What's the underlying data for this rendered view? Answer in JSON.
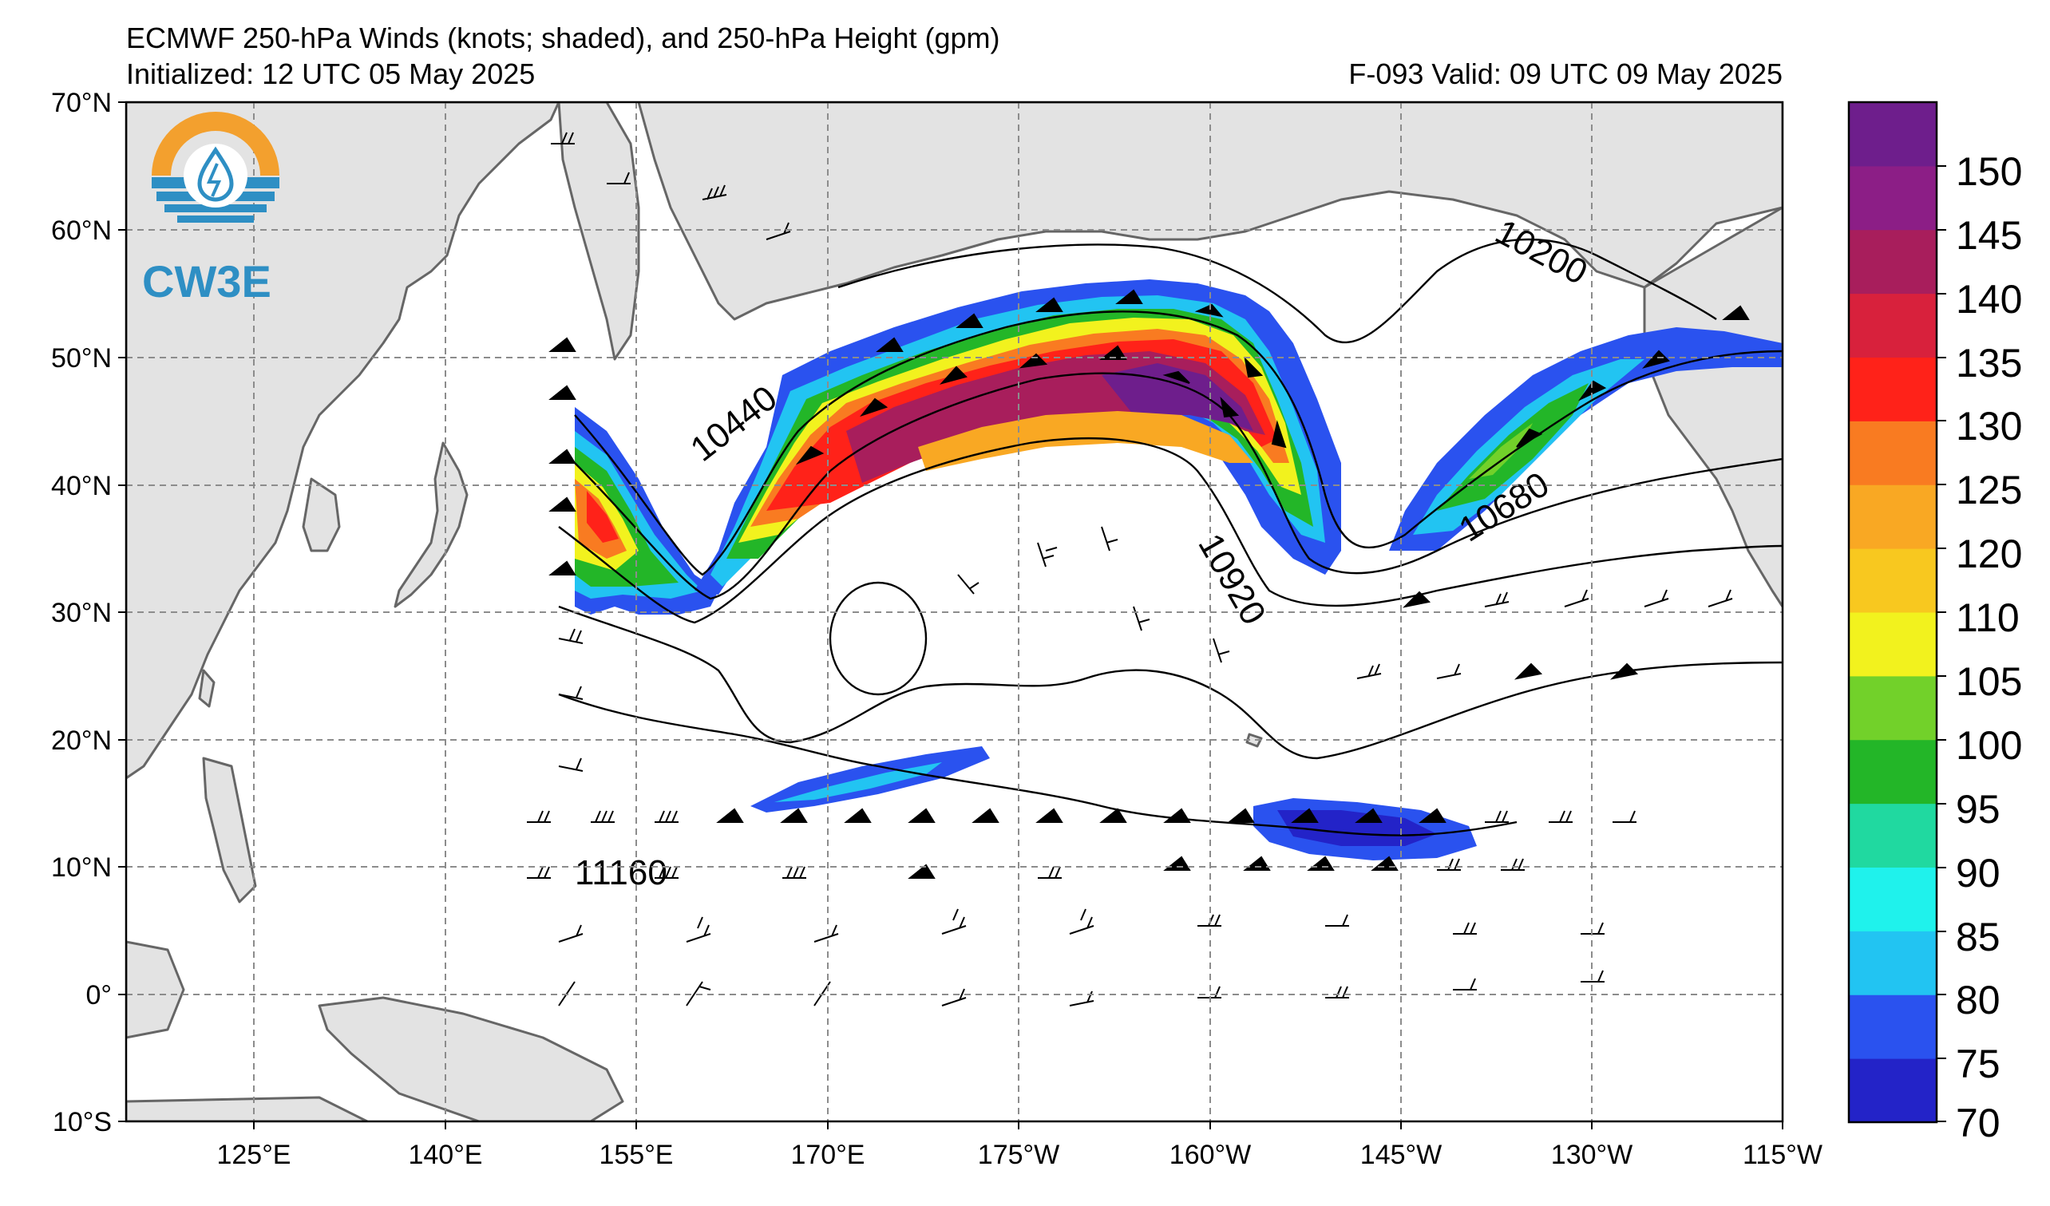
{
  "title": {
    "line1": "ECMWF 250-hPa Winds (knots; shaded), and 250-hPa Height (gpm)",
    "line2": "Initialized: 12 UTC 05 May 2025",
    "valid": "F-093  Valid: 09 UTC 09 May 2025"
  },
  "logo": {
    "text": "CW3E",
    "ring_top_color": "#f3a02e",
    "ring_bottom_color": "#2e8fc4",
    "icon": "water-drop-icon"
  },
  "map": {
    "lat_labels": [
      "70°N",
      "60°N",
      "50°N",
      "40°N",
      "30°N",
      "20°N",
      "10°N",
      "0°",
      "10°S"
    ],
    "lon_labels": [
      "125°E",
      "140°E",
      "155°E",
      "170°E",
      "175°W",
      "160°W",
      "145°W",
      "130°W",
      "115°W"
    ],
    "extent": {
      "lon_min": 115,
      "lon_max": 245,
      "lat_min": -10,
      "lat_max": 70
    },
    "height_contour_labels": [
      "10200",
      "10440",
      "10680",
      "10920",
      "11160"
    ],
    "land_color": "#e3e3e3",
    "coast_color": "#666666"
  },
  "colorbar": {
    "labels": [
      "150",
      "145",
      "140",
      "135",
      "130",
      "125",
      "120",
      "110",
      "105",
      "100",
      "95",
      "90",
      "85",
      "80",
      "75",
      "70"
    ],
    "levels": [
      70,
      75,
      80,
      85,
      90,
      95,
      100,
      105,
      110,
      120,
      125,
      130,
      135,
      140,
      145,
      150,
      155
    ],
    "colors": [
      "#2323c8",
      "#2a52ef",
      "#22c4f2",
      "#1ff2ec",
      "#20d9a0",
      "#23b628",
      "#72d12a",
      "#f2f21e",
      "#f8c81f",
      "#f9a823",
      "#f97b21",
      "#ff2219",
      "#d8213c",
      "#a81e5c",
      "#8c1e86",
      "#6e1e8c"
    ]
  }
}
